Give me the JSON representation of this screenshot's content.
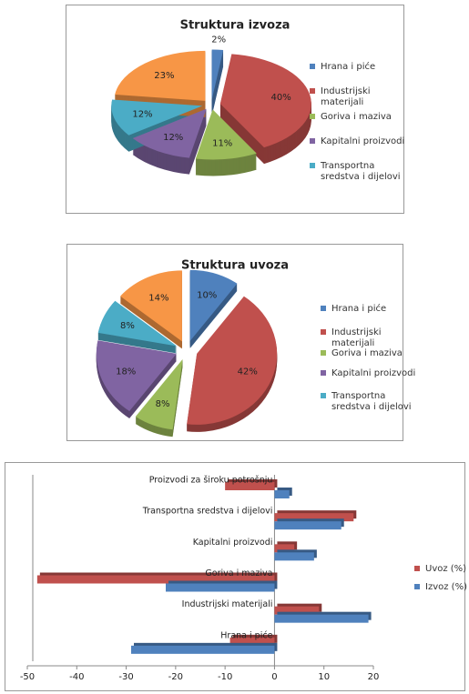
{
  "chart_data": [
    {
      "type": "pie",
      "title": "Struktura izvoza",
      "categories": [
        "Hrana i piće",
        "Industrijski materijali",
        "Goriva i maziva",
        "Kapitalni proizvodi",
        "Transportna sredstva i dijelovi",
        null
      ],
      "values": [
        2,
        40,
        11,
        12,
        12,
        23
      ],
      "value_labels": [
        "2%",
        "40%",
        "11%",
        "12%",
        "12%",
        "23%"
      ],
      "colors": [
        "#4f81bd",
        "#c0504d",
        "#9bbb59",
        "#8064a2",
        "#4bacc6",
        "#f79646"
      ]
    },
    {
      "type": "pie",
      "title": "Struktura uvoza",
      "categories": [
        "Hrana i piće",
        "Industrijski materijali",
        "Goriva i maziva",
        "Kapitalni proizvodi",
        "Transportna sredstva i dijelovi",
        null
      ],
      "values": [
        10,
        42,
        8,
        18,
        8,
        14
      ],
      "value_labels": [
        "10%",
        "42%",
        "8%",
        "18%",
        "8%",
        "14%"
      ],
      "colors": [
        "#4f81bd",
        "#c0504d",
        "#9bbb59",
        "#8064a2",
        "#4bacc6",
        "#f79646"
      ]
    },
    {
      "type": "bar",
      "horizontal": true,
      "categories": [
        "Proizvodi za široku potrošnju",
        "Transportna sredstva i dijelovi",
        "Kapitalni proizvodi",
        "Goriva i maziva",
        "Industrijski materijali",
        "Hrana i piće"
      ],
      "series": [
        {
          "name": "Uvoz (%)",
          "color": "#c0504d",
          "values": [
            -10,
            16,
            4,
            -48,
            9,
            -9
          ]
        },
        {
          "name": "Izvoz (%)",
          "color": "#4f81bd",
          "values": [
            3,
            13.5,
            8,
            -22,
            19,
            -29
          ]
        }
      ],
      "xlim": [
        -50,
        20
      ],
      "xticks": [
        -50,
        -40,
        -30,
        -20,
        -10,
        0,
        10,
        20
      ]
    }
  ]
}
